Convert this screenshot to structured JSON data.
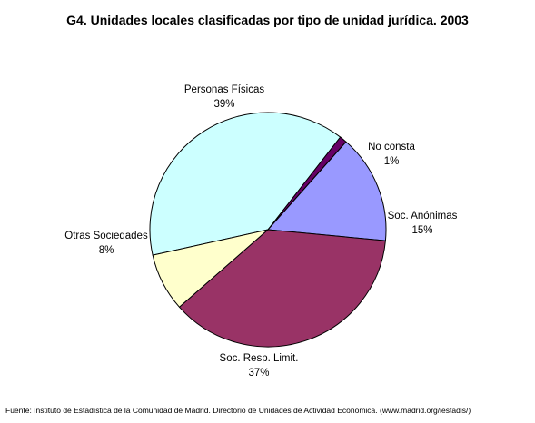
{
  "chart_data": {
    "type": "pie",
    "title": "G4. Unidades locales clasificadas por tipo de unidad jurídica. 2003",
    "categories": [
      "Personas Físicas",
      "No consta",
      "Soc. Anónimas",
      "Soc. Resp. Limit.",
      "Otras Sociedades"
    ],
    "values": [
      39,
      1,
      15,
      37,
      8
    ],
    "value_labels": [
      "39%",
      "1%",
      "15%",
      "37%",
      "8%"
    ],
    "colors": [
      "#ccffff",
      "#660066",
      "#9999ff",
      "#993366",
      "#ffffcc"
    ],
    "legend": "none"
  },
  "source": "Fuente: Instituto de Estadística de la Comunidad de Madrid. Directorio de Unidades de Actividad Económica. (www.madrid.org/iestadis/)"
}
